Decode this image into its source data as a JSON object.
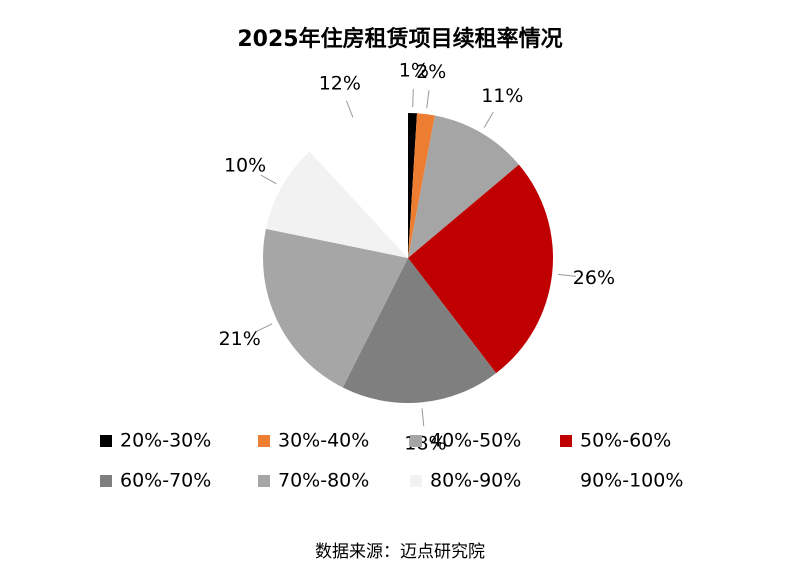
{
  "chart_data": {
    "type": "pie",
    "title": "2025年住房租赁项目续租率情况",
    "categories": [
      "20%-30%",
      "30%-40%",
      "40%-50%",
      "50%-60%",
      "60%-70%",
      "70%-80%",
      "80%-90%",
      "90%-100%"
    ],
    "values": [
      1,
      2,
      11,
      26,
      18,
      21,
      10,
      12
    ],
    "value_labels": [
      "1%",
      "2%",
      "11%",
      "26%",
      "18%",
      "21%",
      "10%",
      "12%"
    ],
    "colors": [
      "#000000",
      "#ed7d31",
      "#a5a5a5",
      "#c00000",
      "#7f7f7f",
      "#a6a6a6",
      "#f2f2f2",
      "#ffffff"
    ],
    "source": "数据来源：迈点研究院"
  }
}
